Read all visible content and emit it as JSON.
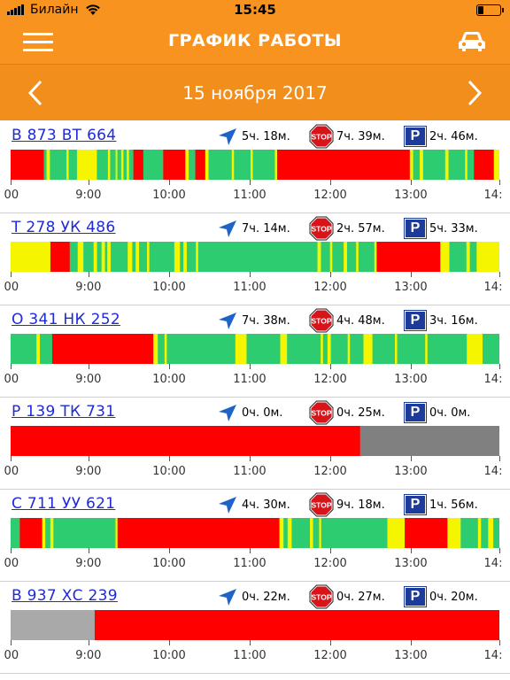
{
  "status_bar": {
    "carrier": "Билайн",
    "time": "15:45"
  },
  "header": {
    "title": "ГРАФИК РАБОТЫ",
    "menu_icon": "hamburger-icon",
    "car_icon": "car-icon"
  },
  "date_bar": {
    "date": "15 ноября 2017",
    "prev_icon": "chevron-left-icon",
    "next_icon": "chevron-right-icon"
  },
  "axis": {
    "ticks": [
      {
        "label": "9:00",
        "pos": 0.1591
      },
      {
        "label": "10:00",
        "pos": 0.3243
      },
      {
        "label": "11:00",
        "pos": 0.4891
      },
      {
        "label": "12:00",
        "pos": 0.654
      },
      {
        "label": "13:00",
        "pos": 0.8188
      }
    ],
    "left_edge_label": "00",
    "right_edge_label": "14:"
  },
  "colors": {
    "moving": "#2ecc71",
    "idle": "#f5f500",
    "stopped": "#ff0000",
    "no_data": "#808080",
    "no_data_light": "#a9a9a9"
  },
  "vehicles": [
    {
      "plate": "В 873 ВТ 664",
      "moving": "5ч. 18м.",
      "stopped": "7ч. 39м.",
      "parked": "2ч. 46м.",
      "segments": [
        [
          "stopped",
          0.06
        ],
        [
          "moving",
          0.005
        ],
        [
          "idle",
          0.006
        ],
        [
          "moving",
          0.03
        ],
        [
          "idle",
          0.004
        ],
        [
          "moving",
          0.015
        ],
        [
          "idle",
          0.036
        ],
        [
          "moving",
          0.02
        ],
        [
          "idle",
          0.004
        ],
        [
          "moving",
          0.01
        ],
        [
          "idle",
          0.003
        ],
        [
          "moving",
          0.007
        ],
        [
          "idle",
          0.004
        ],
        [
          "moving",
          0.006
        ],
        [
          "idle",
          0.004
        ],
        [
          "moving",
          0.008
        ],
        [
          "stopped",
          0.018
        ],
        [
          "moving",
          0.036
        ],
        [
          "stopped",
          0.04
        ],
        [
          "idle",
          0.006
        ],
        [
          "moving",
          0.012
        ],
        [
          "stopped",
          0.018
        ],
        [
          "idle",
          0.006
        ],
        [
          "moving",
          0.042
        ],
        [
          "idle",
          0.004
        ],
        [
          "moving",
          0.03
        ],
        [
          "idle",
          0.004
        ],
        [
          "moving",
          0.04
        ],
        [
          "idle",
          0.004
        ],
        [
          "stopped",
          0.24
        ],
        [
          "idle",
          0.006
        ],
        [
          "moving",
          0.012
        ],
        [
          "idle",
          0.006
        ],
        [
          "moving",
          0.04
        ],
        [
          "idle",
          0.006
        ],
        [
          "moving",
          0.03
        ],
        [
          "idle",
          0.004
        ],
        [
          "moving",
          0.012
        ],
        [
          "stopped",
          0.036
        ],
        [
          "idle",
          0.01
        ]
      ]
    },
    {
      "plate": "Т 278 УК 486",
      "moving": "7ч. 14м.",
      "stopped": "2ч. 57м.",
      "parked": "5ч. 33м.",
      "segments": [
        [
          "idle",
          0.07
        ],
        [
          "stopped",
          0.034
        ],
        [
          "moving",
          0.014
        ],
        [
          "idle",
          0.01
        ],
        [
          "moving",
          0.018
        ],
        [
          "idle",
          0.006
        ],
        [
          "moving",
          0.008
        ],
        [
          "idle",
          0.006
        ],
        [
          "moving",
          0.004
        ],
        [
          "idle",
          0.006
        ],
        [
          "moving",
          0.03
        ],
        [
          "idle",
          0.008
        ],
        [
          "moving",
          0.006
        ],
        [
          "idle",
          0.006
        ],
        [
          "moving",
          0.014
        ],
        [
          "idle",
          0.004
        ],
        [
          "moving",
          0.044
        ],
        [
          "idle",
          0.01
        ],
        [
          "moving",
          0.006
        ],
        [
          "idle",
          0.006
        ],
        [
          "moving",
          0.016
        ],
        [
          "idle",
          0.004
        ],
        [
          "moving",
          0.21
        ],
        [
          "idle",
          0.006
        ],
        [
          "moving",
          0.016
        ],
        [
          "idle",
          0.004
        ],
        [
          "moving",
          0.02
        ],
        [
          "idle",
          0.006
        ],
        [
          "moving",
          0.016
        ],
        [
          "idle",
          0.004
        ],
        [
          "moving",
          0.028
        ],
        [
          "idle",
          0.004
        ],
        [
          "stopped",
          0.112
        ],
        [
          "idle",
          0.016
        ],
        [
          "moving",
          0.03
        ],
        [
          "idle",
          0.006
        ],
        [
          "moving",
          0.012
        ],
        [
          "idle",
          0.04
        ]
      ]
    },
    {
      "plate": "О 341 НК 252",
      "moving": "7ч. 38м.",
      "stopped": "4ч. 48м.",
      "parked": "3ч. 16м.",
      "segments": [
        [
          "moving",
          0.046
        ],
        [
          "idle",
          0.006
        ],
        [
          "moving",
          0.022
        ],
        [
          "stopped",
          0.18
        ],
        [
          "idle",
          0.008
        ],
        [
          "moving",
          0.012
        ],
        [
          "idle",
          0.004
        ],
        [
          "moving",
          0.122
        ],
        [
          "idle",
          0.02
        ],
        [
          "moving",
          0.06
        ],
        [
          "idle",
          0.012
        ],
        [
          "moving",
          0.06
        ],
        [
          "idle",
          0.004
        ],
        [
          "moving",
          0.008
        ],
        [
          "idle",
          0.006
        ],
        [
          "moving",
          0.03
        ],
        [
          "idle",
          0.004
        ],
        [
          "moving",
          0.024
        ],
        [
          "idle",
          0.016
        ],
        [
          "moving",
          0.04
        ],
        [
          "idle",
          0.004
        ],
        [
          "moving",
          0.05
        ],
        [
          "idle",
          0.004
        ],
        [
          "moving",
          0.07
        ],
        [
          "idle",
          0.028
        ],
        [
          "moving",
          0.03
        ]
      ]
    },
    {
      "plate": "Р 139 ТК 731",
      "moving": "0ч. 0м.",
      "stopped": "0ч. 25м.",
      "parked": "0ч. 0м.",
      "segments": [
        [
          "stopped",
          0.715
        ],
        [
          "no_data",
          0.285
        ]
      ]
    },
    {
      "plate": "С 711 УУ 621",
      "moving": "4ч. 30м.",
      "stopped": "9ч. 18м.",
      "parked": "1ч. 56м.",
      "segments": [
        [
          "moving",
          0.018
        ],
        [
          "stopped",
          0.044
        ],
        [
          "idle",
          0.006
        ],
        [
          "moving",
          0.01
        ],
        [
          "idle",
          0.006
        ],
        [
          "moving",
          0.122
        ],
        [
          "idle",
          0.004
        ],
        [
          "stopped",
          0.318
        ],
        [
          "idle",
          0.008
        ],
        [
          "moving",
          0.008
        ],
        [
          "idle",
          0.008
        ],
        [
          "moving",
          0.036
        ],
        [
          "idle",
          0.006
        ],
        [
          "moving",
          0.012
        ],
        [
          "idle",
          0.004
        ],
        [
          "moving",
          0.13
        ],
        [
          "idle",
          0.034
        ],
        [
          "stopped",
          0.084
        ],
        [
          "idle",
          0.026
        ],
        [
          "moving",
          0.034
        ],
        [
          "idle",
          0.006
        ],
        [
          "moving",
          0.014
        ],
        [
          "idle",
          0.01
        ],
        [
          "moving",
          0.012
        ]
      ]
    },
    {
      "plate": "В 937 ХС 239",
      "moving": "0ч. 22м.",
      "stopped": "0ч. 27м.",
      "parked": "0ч. 20м.",
      "segments": [
        [
          "no_data_light",
          0.172
        ],
        [
          "stopped",
          0.828
        ]
      ]
    }
  ]
}
